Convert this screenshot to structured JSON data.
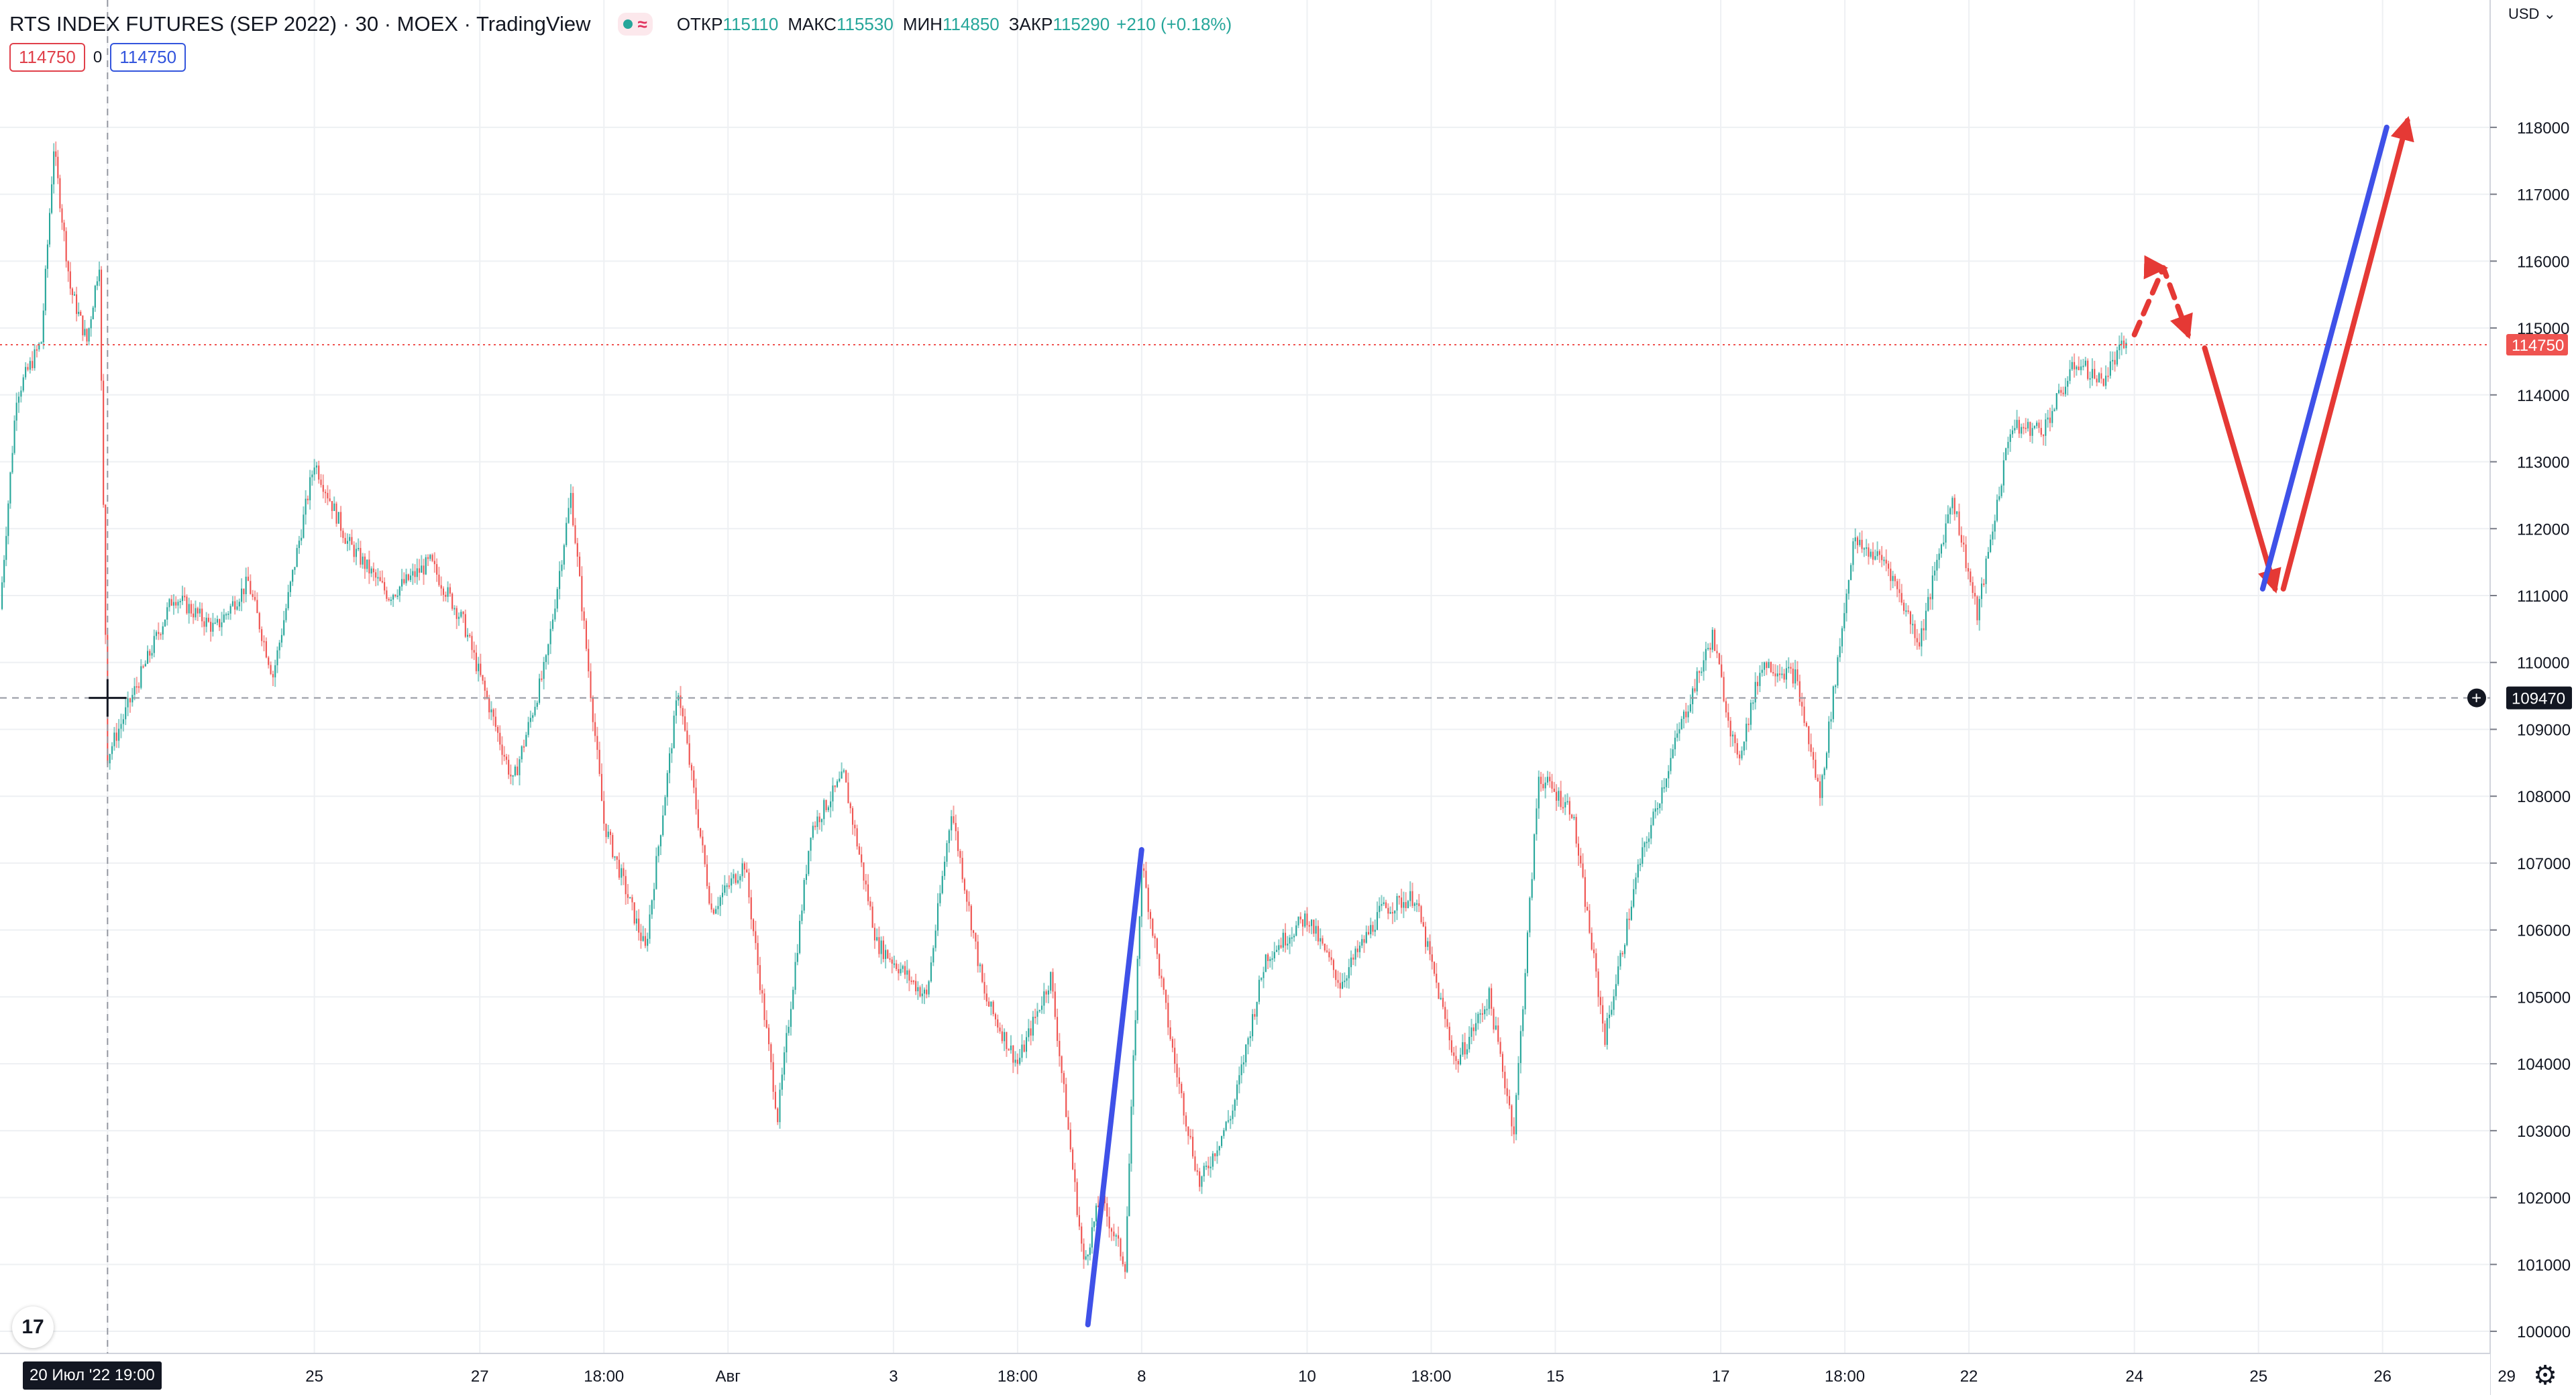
{
  "header": {
    "symbol": "RTS INDEX FUTURES (SEP 2022) · 30 · MOEX · TradingView",
    "ohlc": [
      {
        "key": "ОТКР",
        "value": "115110"
      },
      {
        "key": "МАКС",
        "value": "115530"
      },
      {
        "key": "МИН",
        "value": "114850"
      },
      {
        "key": "ЗАКР",
        "value": "115290"
      },
      {
        "key": "",
        "value": "+210 (+0.18%)"
      }
    ],
    "status_icon": "market-open-dot",
    "wave_icon": "≈"
  },
  "position": {
    "sell": "114750",
    "spread": "0",
    "buy": "114750"
  },
  "currency": "USD",
  "colors": {
    "up": "#26a69a",
    "down": "#ef5350",
    "blue_line": "#3f51e8",
    "red_line": "#e53935",
    "grid": "#eef0f3"
  },
  "chart_data": {
    "type": "candlestick",
    "ylim": [
      99800,
      118500
    ],
    "y_ticks": [
      100000,
      101000,
      102000,
      103000,
      104000,
      105000,
      106000,
      107000,
      108000,
      109000,
      110000,
      111000,
      112000,
      113000,
      114000,
      115000,
      116000,
      117000,
      118000
    ],
    "x_ticks": [
      {
        "label": "20 Июл '22  19:00",
        "x": -0.5
      },
      {
        "label": "25",
        "x": 2
      },
      {
        "label": "27",
        "x": 4
      },
      {
        "label": "18:00",
        "x": 5.5
      },
      {
        "label": "Авг",
        "x": 7
      },
      {
        "label": "3",
        "x": 9
      },
      {
        "label": "18:00",
        "x": 10.5
      },
      {
        "label": "8",
        "x": 12
      },
      {
        "label": "10",
        "x": 14
      },
      {
        "label": "18:00",
        "x": 15.5
      },
      {
        "label": "15",
        "x": 17
      },
      {
        "label": "17",
        "x": 19
      },
      {
        "label": "18:00",
        "x": 20.5
      },
      {
        "label": "22",
        "x": 22
      },
      {
        "label": "24",
        "x": 24
      },
      {
        "label": "25",
        "x": 25.5
      },
      {
        "label": "26",
        "x": 27
      },
      {
        "label": "29",
        "x": 28.5
      }
    ],
    "x_range": [
      -1.8,
      28.3
    ],
    "price_path": [
      [
        -1.8,
        110800
      ],
      [
        -1.6,
        114000
      ],
      [
        -1.3,
        114800
      ],
      [
        -1.15,
        117700
      ],
      [
        -0.95,
        115600
      ],
      [
        -0.75,
        114800
      ],
      [
        -0.6,
        116000
      ],
      [
        -0.5,
        108600
      ],
      [
        -0.2,
        109500
      ],
      [
        0.3,
        111000
      ],
      [
        0.8,
        110500
      ],
      [
        1.2,
        111200
      ],
      [
        1.5,
        109800
      ],
      [
        2.0,
        113000
      ],
      [
        2.4,
        111800
      ],
      [
        2.9,
        111000
      ],
      [
        3.4,
        111500
      ],
      [
        3.8,
        110600
      ],
      [
        4.4,
        108200
      ],
      [
        4.8,
        110000
      ],
      [
        5.1,
        112500
      ],
      [
        5.5,
        107600
      ],
      [
        6.0,
        105700
      ],
      [
        6.4,
        109600
      ],
      [
        6.8,
        106300
      ],
      [
        7.2,
        107000
      ],
      [
        7.6,
        103200
      ],
      [
        8.0,
        107500
      ],
      [
        8.4,
        108300
      ],
      [
        8.8,
        105800
      ],
      [
        9.4,
        105000
      ],
      [
        9.7,
        107800
      ],
      [
        10.1,
        105000
      ],
      [
        10.5,
        104000
      ],
      [
        10.9,
        105300
      ],
      [
        11.3,
        101000
      ],
      [
        11.5,
        102000
      ],
      [
        11.8,
        101000
      ],
      [
        12.0,
        107000
      ],
      [
        12.4,
        104000
      ],
      [
        12.7,
        102200
      ],
      [
        13.1,
        103300
      ],
      [
        13.5,
        105600
      ],
      [
        14.0,
        106200
      ],
      [
        14.4,
        105200
      ],
      [
        14.9,
        106300
      ],
      [
        15.3,
        106500
      ],
      [
        15.8,
        104000
      ],
      [
        16.2,
        105000
      ],
      [
        16.5,
        103000
      ],
      [
        16.8,
        108300
      ],
      [
        17.2,
        107800
      ],
      [
        17.6,
        104400
      ],
      [
        18.0,
        106900
      ],
      [
        18.5,
        109000
      ],
      [
        18.9,
        110400
      ],
      [
        19.2,
        108500
      ],
      [
        19.5,
        110000
      ],
      [
        19.9,
        109800
      ],
      [
        20.2,
        108000
      ],
      [
        20.6,
        111800
      ],
      [
        21.0,
        111500
      ],
      [
        21.4,
        110300
      ],
      [
        21.8,
        112500
      ],
      [
        22.1,
        110700
      ],
      [
        22.5,
        113500
      ],
      [
        22.9,
        113500
      ],
      [
        23.3,
        114500
      ],
      [
        23.6,
        114200
      ],
      [
        23.9,
        114800
      ]
    ],
    "current_price": 114750,
    "crosshair_price": 109470,
    "crosshair_price_label": "109470",
    "current_price_label": "114750",
    "drawings": [
      {
        "color": "blue",
        "style": "solid",
        "points": [
          [
            11.35,
            100100
          ],
          [
            12.0,
            107200
          ]
        ]
      },
      {
        "color": "red",
        "style": "dashed",
        "arrow": true,
        "points": [
          [
            24.0,
            114900
          ],
          [
            24.35,
            115900
          ],
          [
            24.65,
            114900
          ]
        ]
      },
      {
        "color": "red",
        "style": "solid",
        "arrow": true,
        "points": [
          [
            24.85,
            114700
          ],
          [
            25.7,
            111100
          ]
        ]
      },
      {
        "color": "red",
        "style": "solid",
        "arrow": true,
        "points": [
          [
            25.8,
            111100
          ],
          [
            27.3,
            118100
          ]
        ]
      },
      {
        "color": "blue",
        "style": "solid",
        "points": [
          [
            25.55,
            111100
          ],
          [
            27.05,
            118000
          ]
        ]
      }
    ]
  }
}
